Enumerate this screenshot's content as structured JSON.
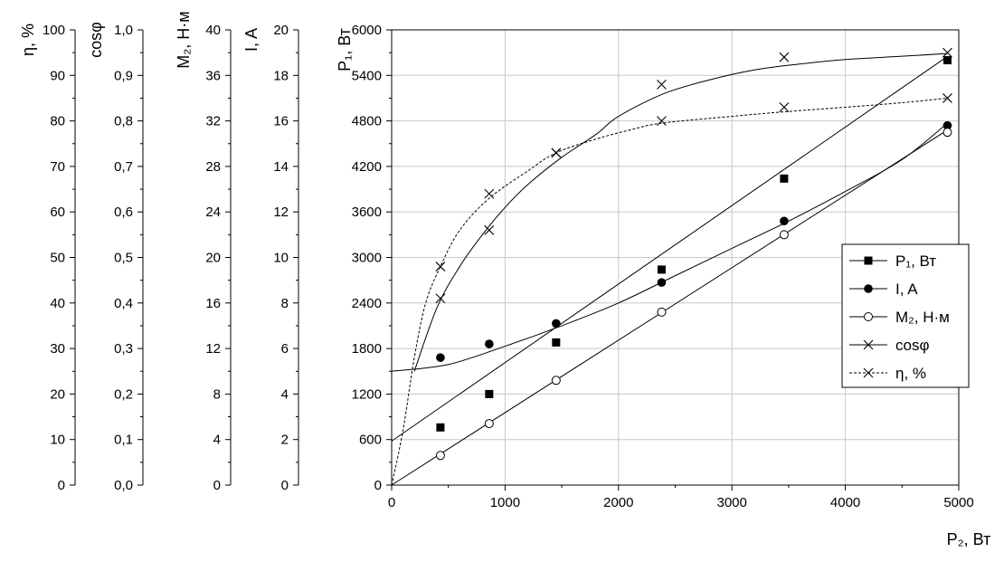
{
  "chart_data": {
    "type": "line",
    "xlabel": "P₂, Вт",
    "xlim": [
      0,
      5000
    ],
    "xticks": [
      0,
      1000,
      2000,
      3000,
      4000,
      5000
    ],
    "grid": true,
    "legend_position": "right",
    "axes": [
      {
        "id": "eta",
        "label": "η, %",
        "lim": [
          0,
          100
        ],
        "ticks": [
          "0",
          "10",
          "20",
          "30",
          "40",
          "50",
          "60",
          "70",
          "80",
          "90",
          "100"
        ]
      },
      {
        "id": "cos",
        "label": "cosφ",
        "lim": [
          0,
          1
        ],
        "ticks": [
          "0,0",
          "0,1",
          "0,2",
          "0,3",
          "0,4",
          "0,5",
          "0,6",
          "0,7",
          "0,8",
          "0,9",
          "1,0"
        ]
      },
      {
        "id": "m2",
        "label": "M₂, Н·м",
        "lim": [
          0,
          40
        ],
        "ticks": [
          "0",
          "4",
          "8",
          "12",
          "16",
          "20",
          "24",
          "28",
          "32",
          "36",
          "40"
        ]
      },
      {
        "id": "i",
        "label": "I, A",
        "lim": [
          0,
          20
        ],
        "ticks": [
          "0",
          "2",
          "4",
          "6",
          "8",
          "10",
          "12",
          "14",
          "16",
          "18",
          "20"
        ]
      },
      {
        "id": "p1",
        "label": "P₁, Вт",
        "lim": [
          0,
          6000
        ],
        "ticks": [
          "0",
          "600",
          "1200",
          "1800",
          "2400",
          "3000",
          "3600",
          "4200",
          "4800",
          "5400",
          "6000"
        ]
      }
    ],
    "series": [
      {
        "name": "P₁, Вт",
        "axis": "p1",
        "marker": "square",
        "x": [
          430,
          860,
          1450,
          2380,
          3460,
          4900
        ],
        "y": [
          760,
          1200,
          1880,
          2840,
          4040,
          5600
        ],
        "fit": {
          "x": [
            0,
            4900
          ],
          "y": [
            580,
            5650
          ]
        }
      },
      {
        "name": "I, A",
        "axis": "i",
        "marker": "dot",
        "x": [
          430,
          860,
          1450,
          2380,
          3460,
          4900
        ],
        "y": [
          5.6,
          6.2,
          7.1,
          8.9,
          11.6,
          15.8
        ],
        "fit": {
          "x": [
            0,
            500,
            1000,
            1500,
            2000,
            2500,
            3000,
            3500,
            4000,
            4500,
            4900
          ],
          "y": [
            5.0,
            5.3,
            6.1,
            7.0,
            8.0,
            9.2,
            10.4,
            11.6,
            12.9,
            14.3,
            15.9
          ]
        }
      },
      {
        "name": "M₂, Н·м",
        "axis": "m2",
        "marker": "circle",
        "x": [
          430,
          860,
          1450,
          2380,
          3460,
          4900
        ],
        "y": [
          2.6,
          5.4,
          9.2,
          15.2,
          22.0,
          31.0
        ],
        "fit": {
          "x": [
            0,
            4900
          ],
          "y": [
            0,
            31.2
          ]
        }
      },
      {
        "name": "cosφ",
        "axis": "cos",
        "marker": "cross",
        "x": [
          430,
          860,
          1450,
          2380,
          3460,
          4900
        ],
        "y": [
          0.41,
          0.56,
          0.73,
          0.88,
          0.94,
          0.95
        ],
        "fit": {
          "x": [
            200,
            400,
            600,
            800,
            1000,
            1200,
            1500,
            1800,
            2000,
            2400,
            2800,
            3200,
            3600,
            4000,
            4500,
            4900
          ],
          "y": [
            0.25,
            0.39,
            0.48,
            0.55,
            0.61,
            0.66,
            0.72,
            0.77,
            0.81,
            0.86,
            0.89,
            0.912,
            0.925,
            0.935,
            0.942,
            0.948
          ]
        }
      },
      {
        "name": "η, %",
        "axis": "eta",
        "marker": "cross",
        "dashed": true,
        "x": [
          430,
          860,
          1450,
          2380,
          3460,
          4900
        ],
        "y": [
          48,
          64,
          73,
          80,
          83,
          85
        ],
        "fit": {
          "x": [
            0,
            100,
            200,
            300,
            430,
            600,
            860,
            1200,
            1450,
            1800,
            2100,
            2380,
            3000,
            3460,
            4000,
            4500,
            4900
          ],
          "y": [
            0,
            12,
            28,
            40,
            48,
            56,
            63,
            69,
            73,
            76,
            78,
            79.5,
            81,
            82,
            83,
            84,
            85
          ]
        }
      }
    ]
  }
}
